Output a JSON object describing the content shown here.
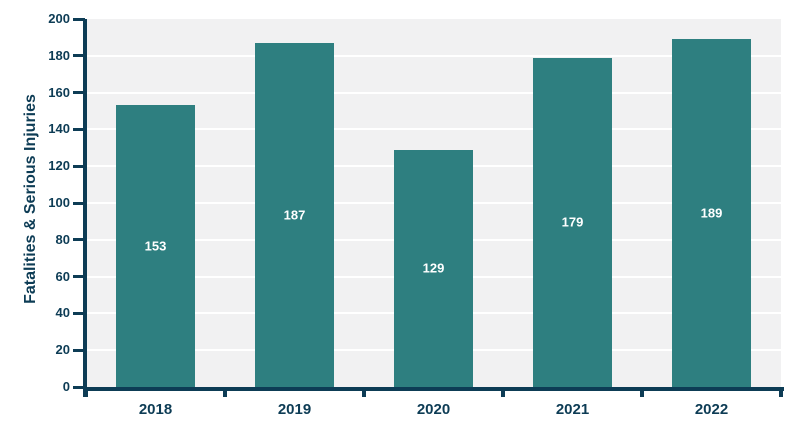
{
  "chart_data": {
    "type": "bar",
    "categories": [
      "2018",
      "2019",
      "2020",
      "2021",
      "2022"
    ],
    "values": [
      153,
      187,
      129,
      179,
      189
    ],
    "title": "",
    "xlabel": "",
    "ylabel": "Fatalities & Serious Injuries",
    "ylim": [
      0,
      200
    ],
    "ytick_step": 20,
    "grid": true,
    "legend_position": "none",
    "value_labels_shown": true,
    "colors": {
      "bar": "#2e7f80",
      "axis_and_text": "#0d3c55",
      "plot_background": "#f1f1f2",
      "gridline": "#ffffff",
      "bar_value_label": "#ffffff",
      "page_background": "#ffffff"
    }
  }
}
